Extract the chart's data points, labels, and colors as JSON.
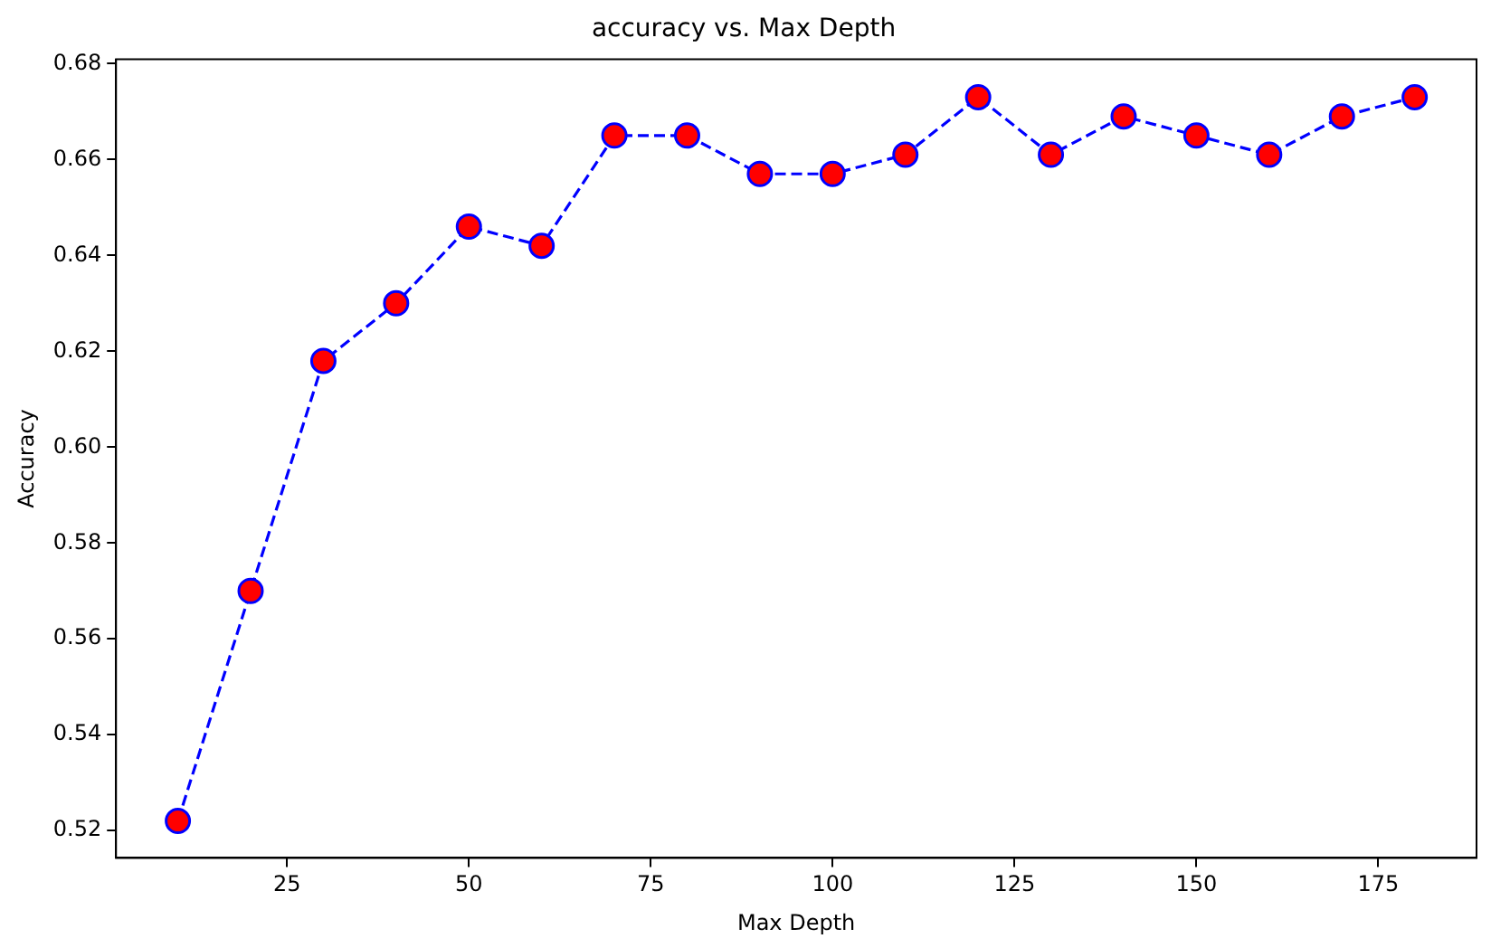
{
  "chart_data": {
    "type": "line",
    "title": "accuracy vs. Max Depth",
    "xlabel": "Max Depth",
    "ylabel": "Accuracy",
    "x": [
      10,
      20,
      30,
      40,
      50,
      60,
      70,
      80,
      90,
      100,
      110,
      120,
      130,
      140,
      150,
      160,
      170,
      180
    ],
    "series": [
      {
        "color": "#0000ff",
        "colors": [
          "#ff0000",
          "#ff0000",
          "#ff0000",
          "#ff0000",
          "#ff0000",
          "#ff0000",
          "#ff0000",
          "#ff0000",
          "#ff0000",
          "#ff0000",
          "#ff0000",
          "#ff0000",
          "#ff0000",
          "#ff0000",
          "#ff0000",
          "#ff0000",
          "#ff0000",
          "#ff0000"
        ],
        "values": [
          0.522,
          0.57,
          0.618,
          0.63,
          0.646,
          0.642,
          0.665,
          0.665,
          0.657,
          0.657,
          0.661,
          0.673,
          0.661,
          0.669,
          0.665,
          0.661,
          0.669,
          0.673
        ]
      }
    ],
    "xlim": [
      1.5,
      188.5
    ],
    "xticks": [
      25,
      50,
      75,
      100,
      125,
      150,
      175
    ],
    "ylim": [
      0.5143,
      0.6809
    ],
    "yticks": [
      0.52,
      0.54,
      0.56,
      0.58,
      {
        "value": 0.6,
        "label": "0.60"
      },
      0.62,
      0.64,
      0.66,
      0.68
    ],
    "grid": false,
    "legend": false,
    "marker": "circle",
    "line_style": "dashed"
  }
}
